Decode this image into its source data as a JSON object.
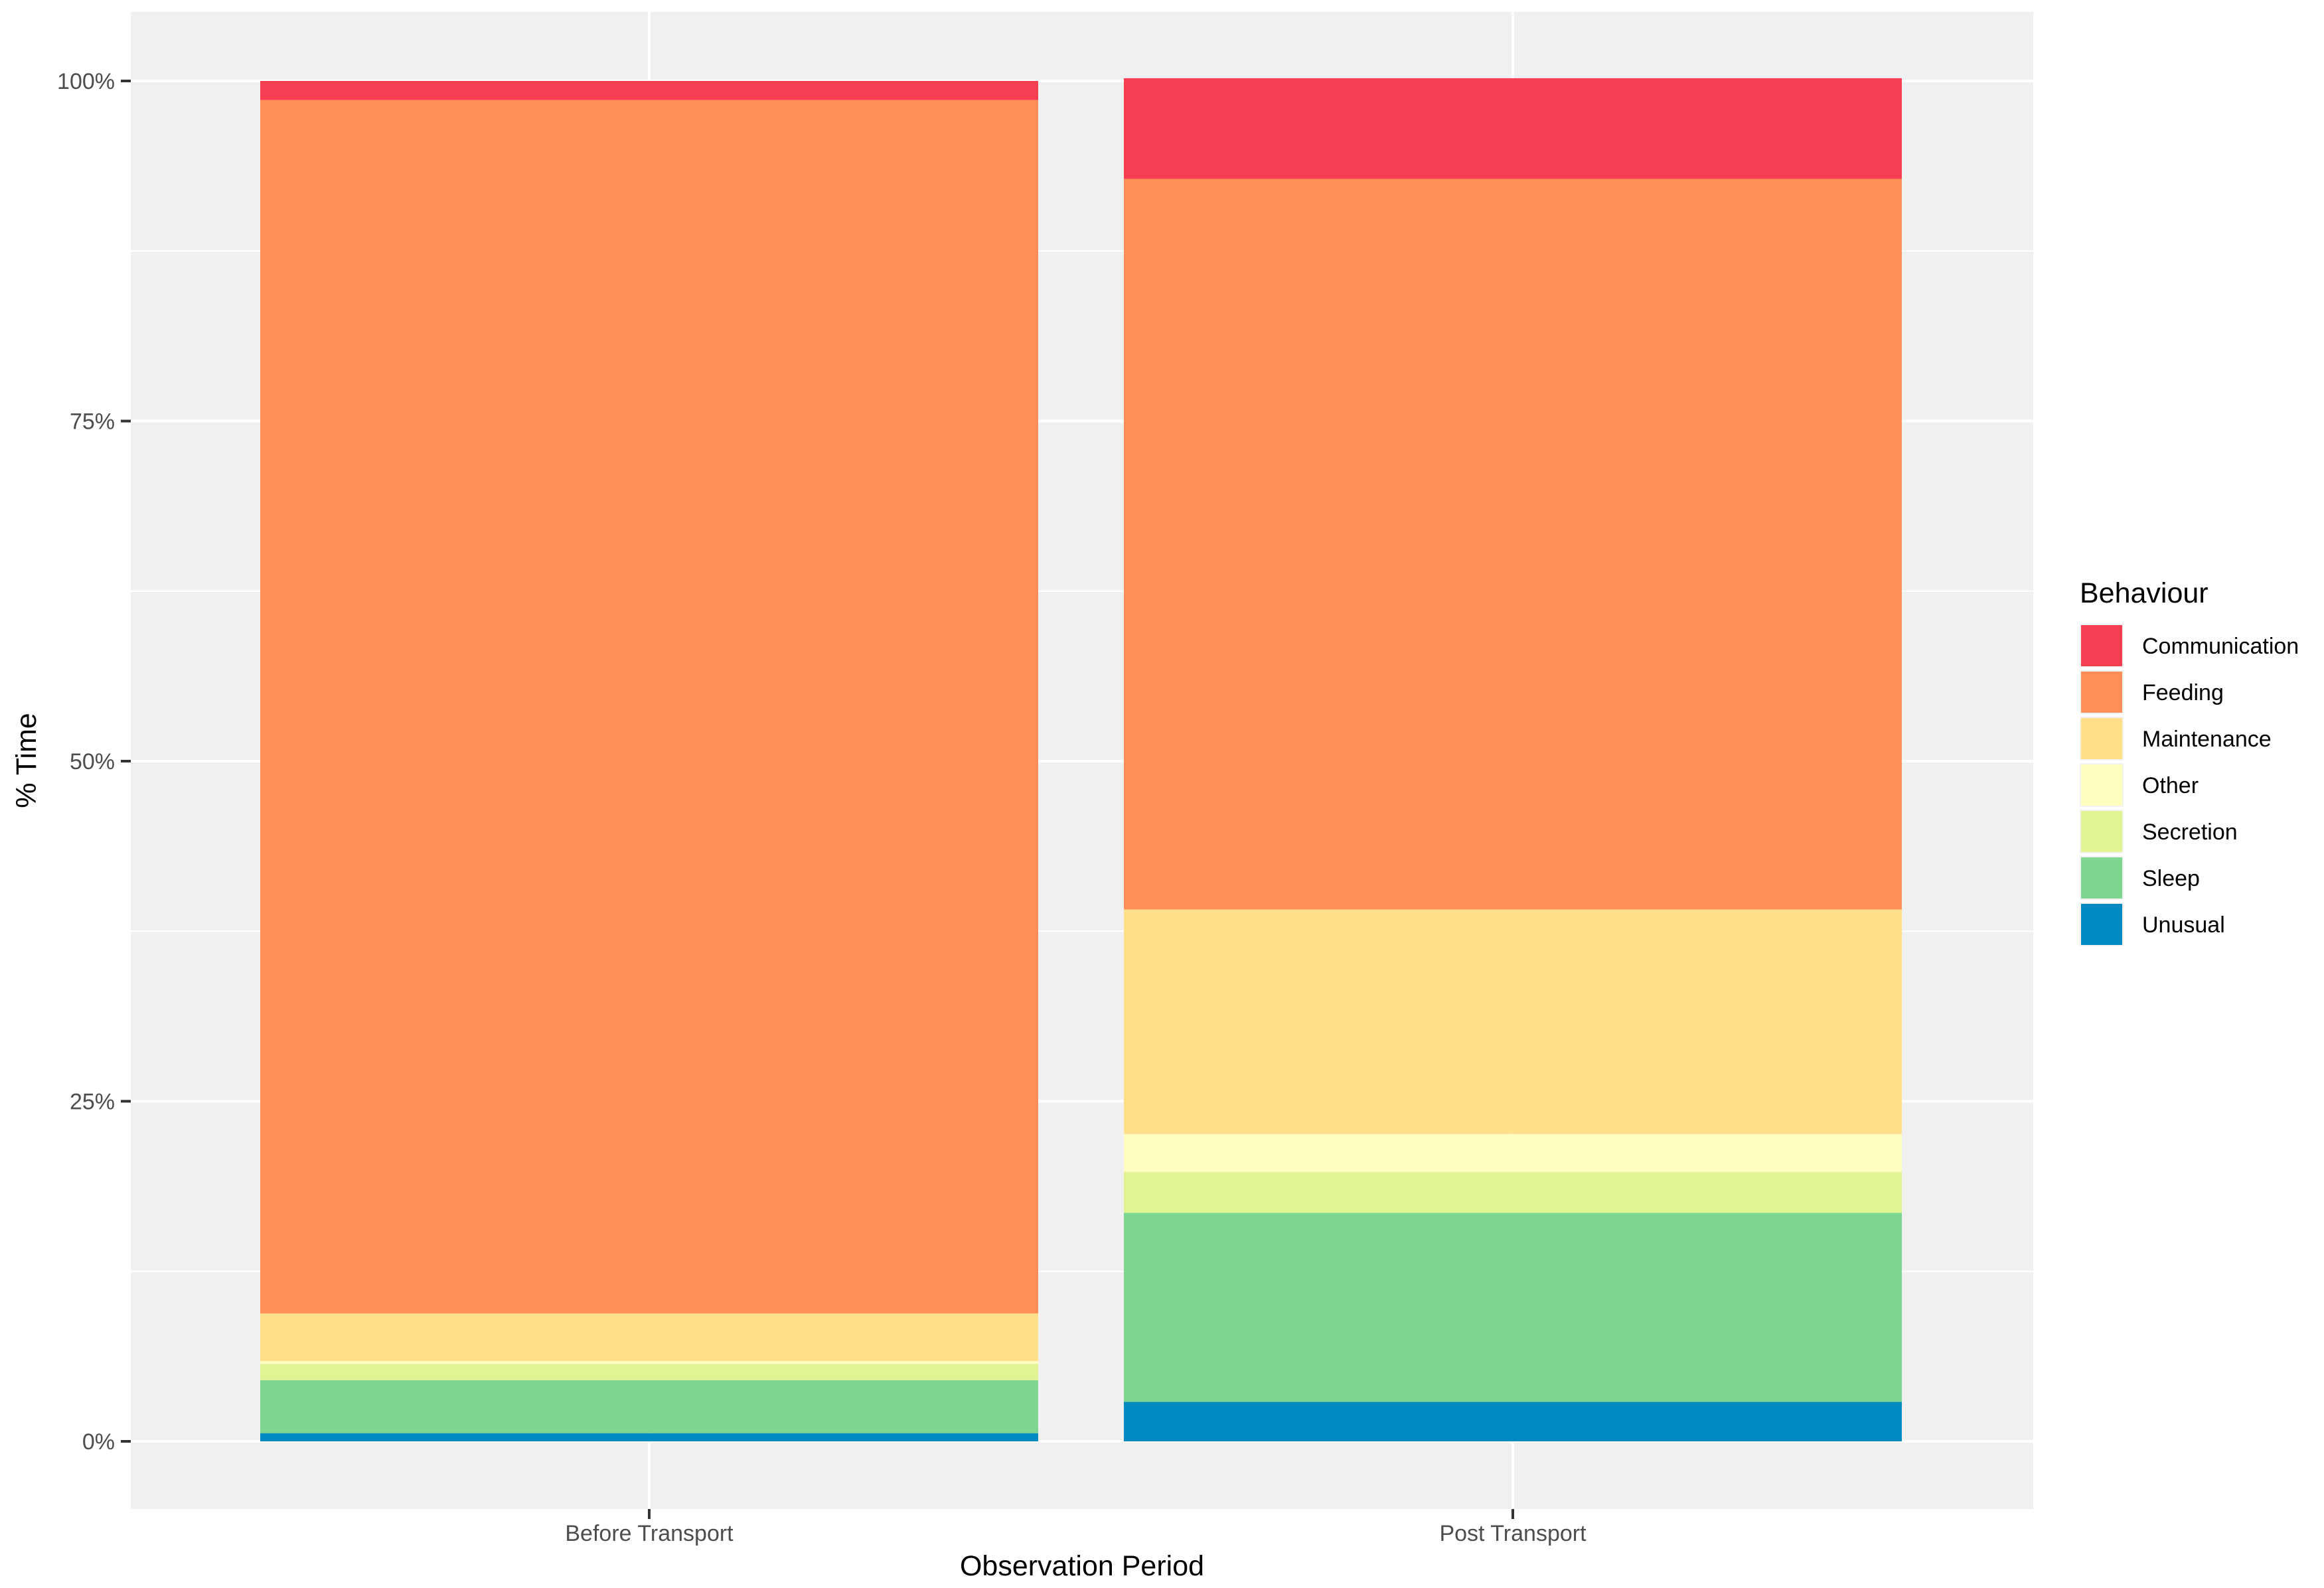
{
  "chart_data": {
    "type": "bar",
    "stacked": true,
    "categories": [
      "Before Transport",
      "Post Transport"
    ],
    "xlabel": "Observation Period",
    "ylabel": "% Time",
    "ylim": [
      0,
      100
    ],
    "y_ticks": [
      0,
      25,
      50,
      75,
      100
    ],
    "y_tick_labels": [
      "0%",
      "25%",
      "50%",
      "75%",
      "100%"
    ],
    "legend_title": "Behaviour",
    "legend_position": "right",
    "grid": true,
    "stack_order": [
      "Unusual",
      "Sleep",
      "Secretion",
      "Other",
      "Maintenance",
      "Feeding",
      "Communication"
    ],
    "series": [
      {
        "name": "Communication",
        "color": "#F53E52",
        "values": [
          1.4,
          7.4
        ]
      },
      {
        "name": "Feeding",
        "color": "#FF8F56",
        "values": [
          89.2,
          53.7
        ]
      },
      {
        "name": "Maintenance",
        "color": "#FFDF88",
        "values": [
          3.5,
          16.5
        ]
      },
      {
        "name": "Other",
        "color": "#FFFFBF",
        "values": [
          0.2,
          2.8
        ]
      },
      {
        "name": "Secretion",
        "color": "#E1F494",
        "values": [
          1.2,
          3.0
        ]
      },
      {
        "name": "Sleep",
        "color": "#7FD691",
        "values": [
          3.9,
          13.9
        ]
      },
      {
        "name": "Unusual",
        "color": "#008AC1",
        "values": [
          0.6,
          2.9
        ]
      }
    ]
  }
}
